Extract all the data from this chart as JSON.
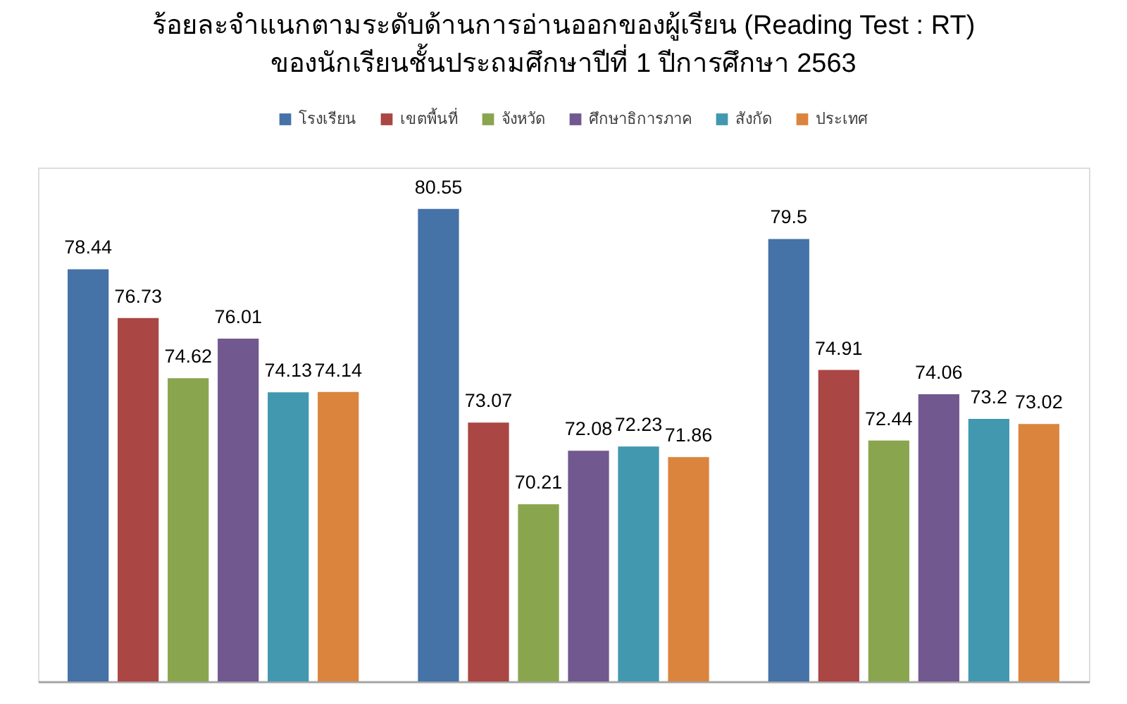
{
  "chart_data": {
    "type": "bar",
    "title": "ร้อยละจำแนกตามระดับด้านการอ่านออกของผู้เรียน (Reading Test : RT)",
    "subtitle": "ของนักเรียนชั้นประถมศึกษาปีที่ 1 ปีการศึกษา 2563",
    "categories": [
      null,
      null,
      null
    ],
    "series": [
      {
        "name": "โรงเรียน",
        "color": "#4572a7",
        "values": [
          78.44,
          80.55,
          79.5
        ]
      },
      {
        "name": "เขตพื้นที่",
        "color": "#aa4643",
        "values": [
          76.73,
          73.07,
          74.91
        ]
      },
      {
        "name": "จังหวัด",
        "color": "#89a54e",
        "values": [
          74.62,
          70.21,
          72.44
        ]
      },
      {
        "name": "ศึกษาธิการภาค",
        "color": "#71588f",
        "values": [
          76.01,
          72.08,
          74.06
        ]
      },
      {
        "name": "สังกัด",
        "color": "#4198af",
        "values": [
          74.13,
          72.23,
          73.2
        ]
      },
      {
        "name": "ประเทศ",
        "color": "#db843d",
        "values": [
          74.14,
          71.86,
          73.02
        ]
      }
    ],
    "ylim": [
      64,
      82
    ],
    "data_labels": true,
    "legend": "top"
  }
}
